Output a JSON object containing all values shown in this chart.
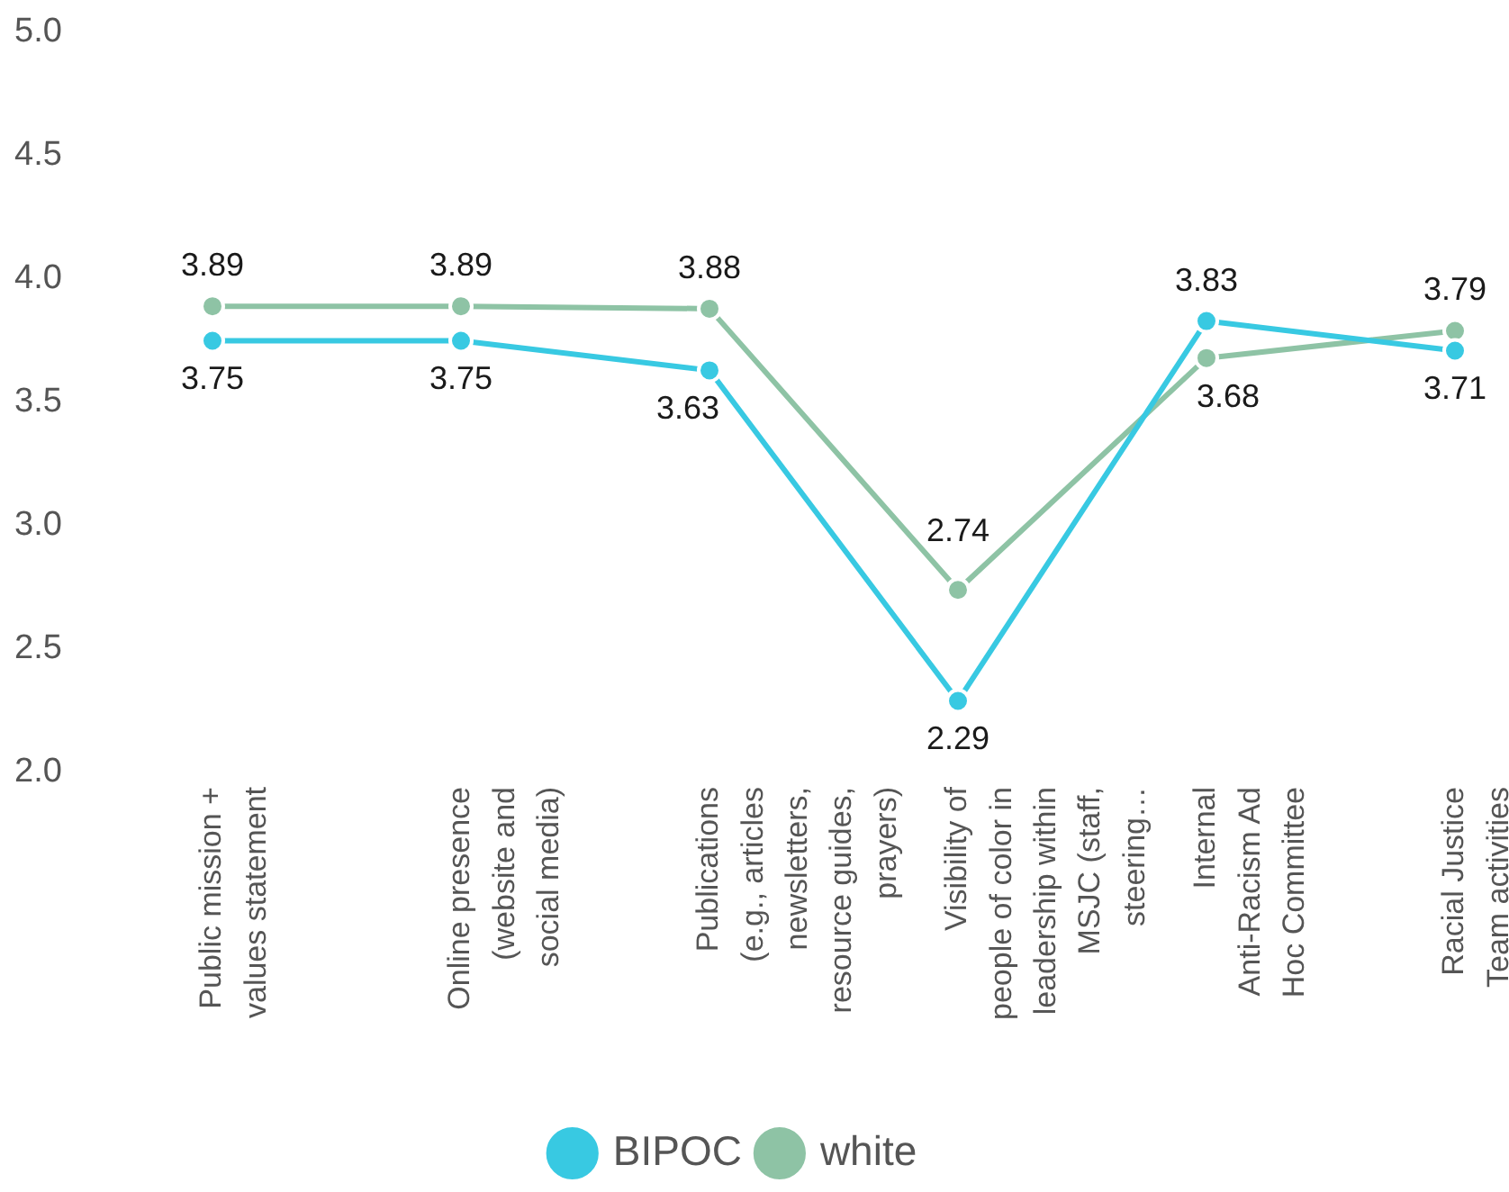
{
  "chart_data": {
    "type": "line",
    "categories": [
      "Public mission + values statement",
      "Online presence (website and social media)",
      "Publications (e.g., articles newsletters, resource guides, prayers)",
      "Visibility of people of color in leadership within MSJC (staff, steering…",
      "Internal Anti-Racism Ad Hoc Committee",
      "Racial Justice Team activities"
    ],
    "series": [
      {
        "name": "BIPOC",
        "color": "#38c9e2",
        "values": [
          3.75,
          3.75,
          3.63,
          2.29,
          3.83,
          3.71
        ]
      },
      {
        "name": "white",
        "color": "#8ec3a5",
        "values": [
          3.89,
          3.89,
          3.88,
          2.74,
          3.68,
          3.79
        ]
      }
    ],
    "ylim": [
      2,
      5
    ],
    "yticks": [
      {
        "value": 2,
        "label": "2.0"
      },
      2.5,
      {
        "value": 3,
        "label": "3.0"
      },
      3.5,
      {
        "value": 4,
        "label": "4.0"
      },
      4.5,
      {
        "value": 5,
        "label": "5.0"
      }
    ],
    "grid": false,
    "legend": "bottom",
    "marker": "circle",
    "line_style": "solid",
    "data_labels": true
  }
}
